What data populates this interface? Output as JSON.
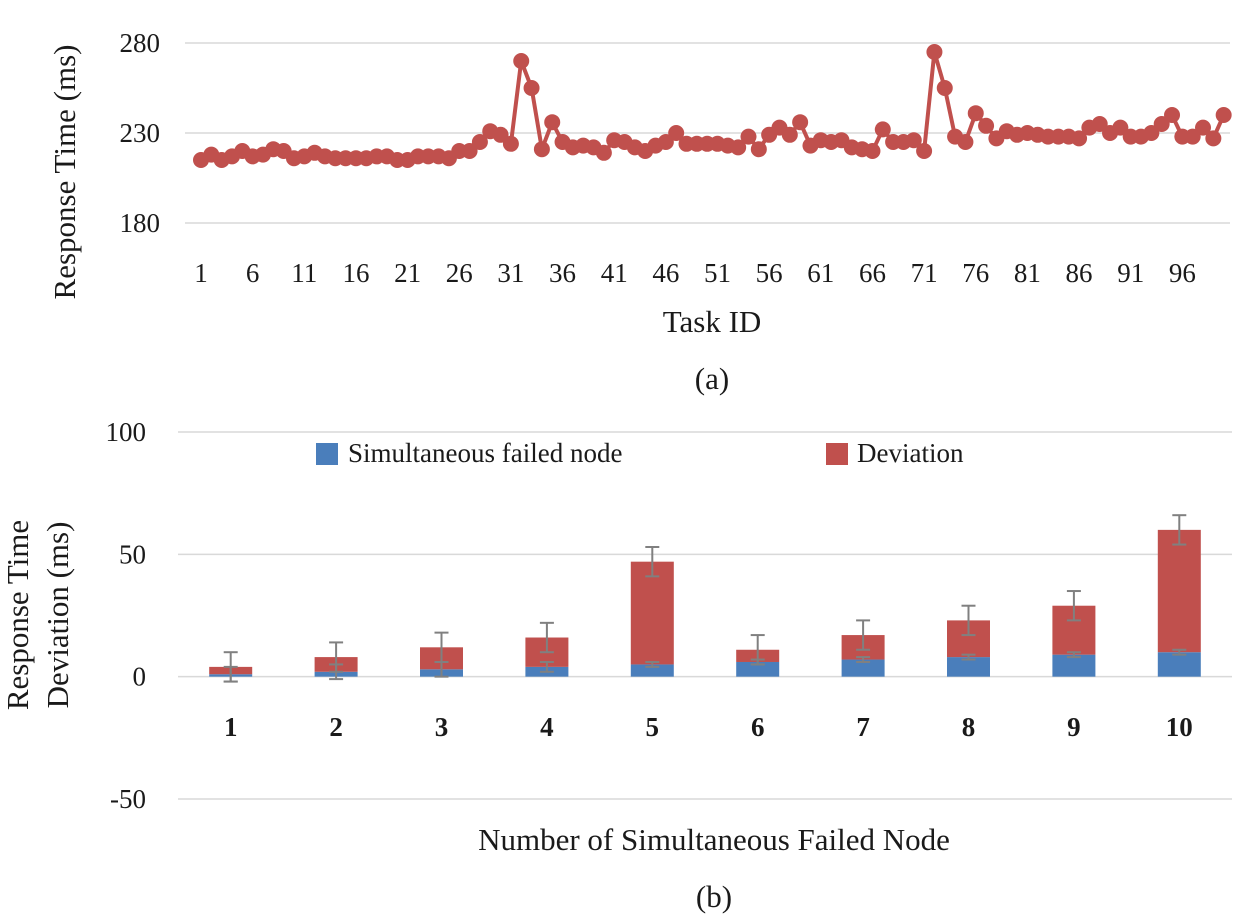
{
  "chart_data": [
    {
      "id": "a",
      "type": "line",
      "caption": "(a)",
      "xlabel": "Task ID",
      "ylabel": "Response Time (ms)",
      "ylim": [
        180,
        280
      ],
      "yticks": [
        180,
        230,
        280
      ],
      "xtick_labels": [
        "1",
        "6",
        "11",
        "16",
        "21",
        "26",
        "31",
        "36",
        "41",
        "46",
        "51",
        "56",
        "61",
        "66",
        "71",
        "76",
        "81",
        "86",
        "91",
        "96"
      ],
      "color": "#c0504d",
      "x": [
        1,
        2,
        3,
        4,
        5,
        6,
        7,
        8,
        9,
        10,
        11,
        12,
        13,
        14,
        15,
        16,
        17,
        18,
        19,
        20,
        21,
        22,
        23,
        24,
        25,
        26,
        27,
        28,
        29,
        30,
        31,
        32,
        33,
        34,
        35,
        36,
        37,
        38,
        39,
        40,
        41,
        42,
        43,
        44,
        45,
        46,
        47,
        48,
        49,
        50,
        51,
        52,
        53,
        54,
        55,
        56,
        57,
        58,
        59,
        60,
        61,
        62,
        63,
        64,
        65,
        66,
        67,
        68,
        69,
        70,
        71,
        72,
        73,
        74,
        75,
        76,
        77,
        78,
        79,
        80,
        81,
        82,
        83,
        84,
        85,
        86,
        87,
        88,
        89,
        90,
        91,
        92,
        93,
        94,
        95,
        96,
        97,
        98,
        99,
        100
      ],
      "values": [
        215,
        218,
        215,
        217,
        220,
        217,
        218,
        221,
        220,
        216,
        217,
        219,
        217,
        216,
        216,
        216,
        216,
        217,
        217,
        215,
        215,
        217,
        217,
        217,
        216,
        220,
        220,
        225,
        231,
        229,
        224,
        270,
        255,
        221,
        236,
        225,
        222,
        223,
        222,
        219,
        226,
        225,
        222,
        220,
        223,
        225,
        230,
        224,
        224,
        224,
        224,
        223,
        222,
        228,
        221,
        229,
        233,
        229,
        236,
        223,
        226,
        225,
        226,
        222,
        221,
        220,
        232,
        225,
        225,
        226,
        220,
        275,
        255,
        228,
        225,
        241,
        234,
        227,
        231,
        229,
        230,
        229,
        228,
        228,
        228,
        227,
        233,
        235,
        230,
        233,
        228,
        228,
        230,
        235,
        240,
        228,
        228,
        233,
        227,
        240
      ]
    },
    {
      "id": "b",
      "type": "bar",
      "stacked": true,
      "caption": "(b)",
      "xlabel": "Number of Simultaneous Failed Node",
      "ylabel": "Response Time Deviation (ms)",
      "ylabel_lines": [
        "Response Time",
        "Deviation (ms)"
      ],
      "ylim": [
        -50,
        100
      ],
      "yticks": [
        -50,
        0,
        50,
        100
      ],
      "categories": [
        "1",
        "2",
        "3",
        "4",
        "5",
        "6",
        "7",
        "8",
        "9",
        "10"
      ],
      "series": [
        {
          "name": "Simultaneous failed node",
          "color": "#4a7ebb",
          "values": [
            1,
            2,
            3,
            4,
            5,
            6,
            7,
            8,
            9,
            10
          ]
        },
        {
          "name": "Deviation",
          "color": "#c0504d",
          "values": [
            3,
            6,
            9,
            12,
            42,
            5,
            10,
            15,
            20,
            50
          ]
        }
      ],
      "error_bars": [
        {
          "series": "Simultaneous failed node",
          "values": [
            3,
            3,
            3,
            2,
            1,
            1,
            1,
            1,
            1,
            1
          ]
        },
        {
          "series": "Deviation",
          "values": [
            6,
            6,
            6,
            6,
            6,
            6,
            6,
            6,
            6,
            6
          ]
        }
      ],
      "error_color": "#808080",
      "legend_position": "top-center"
    }
  ]
}
